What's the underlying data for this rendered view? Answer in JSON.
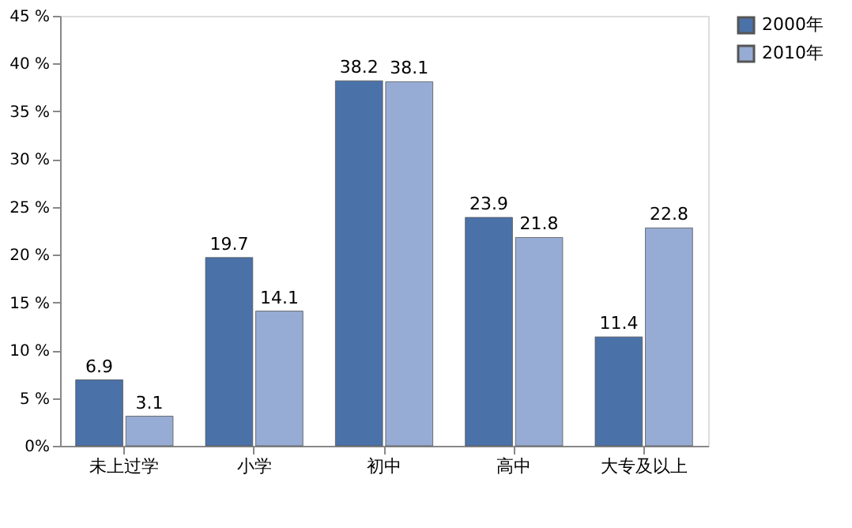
{
  "chart_data": {
    "type": "bar",
    "categories": [
      "未上过学",
      "小学",
      "初中",
      "高中",
      "大专及以上"
    ],
    "series": [
      {
        "name": "2000年",
        "color": "#4a71a8",
        "values": [
          6.9,
          19.7,
          38.2,
          23.9,
          11.4
        ]
      },
      {
        "name": "2010年",
        "color": "#97acd4",
        "values": [
          3.1,
          14.1,
          38.1,
          21.8,
          22.8
        ]
      }
    ],
    "ylim": [
      0,
      45
    ],
    "yticks": [
      {
        "value": 0,
        "label": "0%"
      },
      {
        "value": 5,
        "label": "5 %"
      },
      {
        "value": 10,
        "label": "10 %"
      },
      {
        "value": 15,
        "label": "15 %"
      },
      {
        "value": 20,
        "label": "20 %"
      },
      {
        "value": 25,
        "label": "25 %"
      },
      {
        "value": 30,
        "label": "30 %"
      },
      {
        "value": 35,
        "label": "35 %"
      },
      {
        "value": 40,
        "label": "40 %"
      },
      {
        "value": 45,
        "label": "45 %"
      }
    ],
    "data_labels": true,
    "legend": "right",
    "grid": false
  }
}
